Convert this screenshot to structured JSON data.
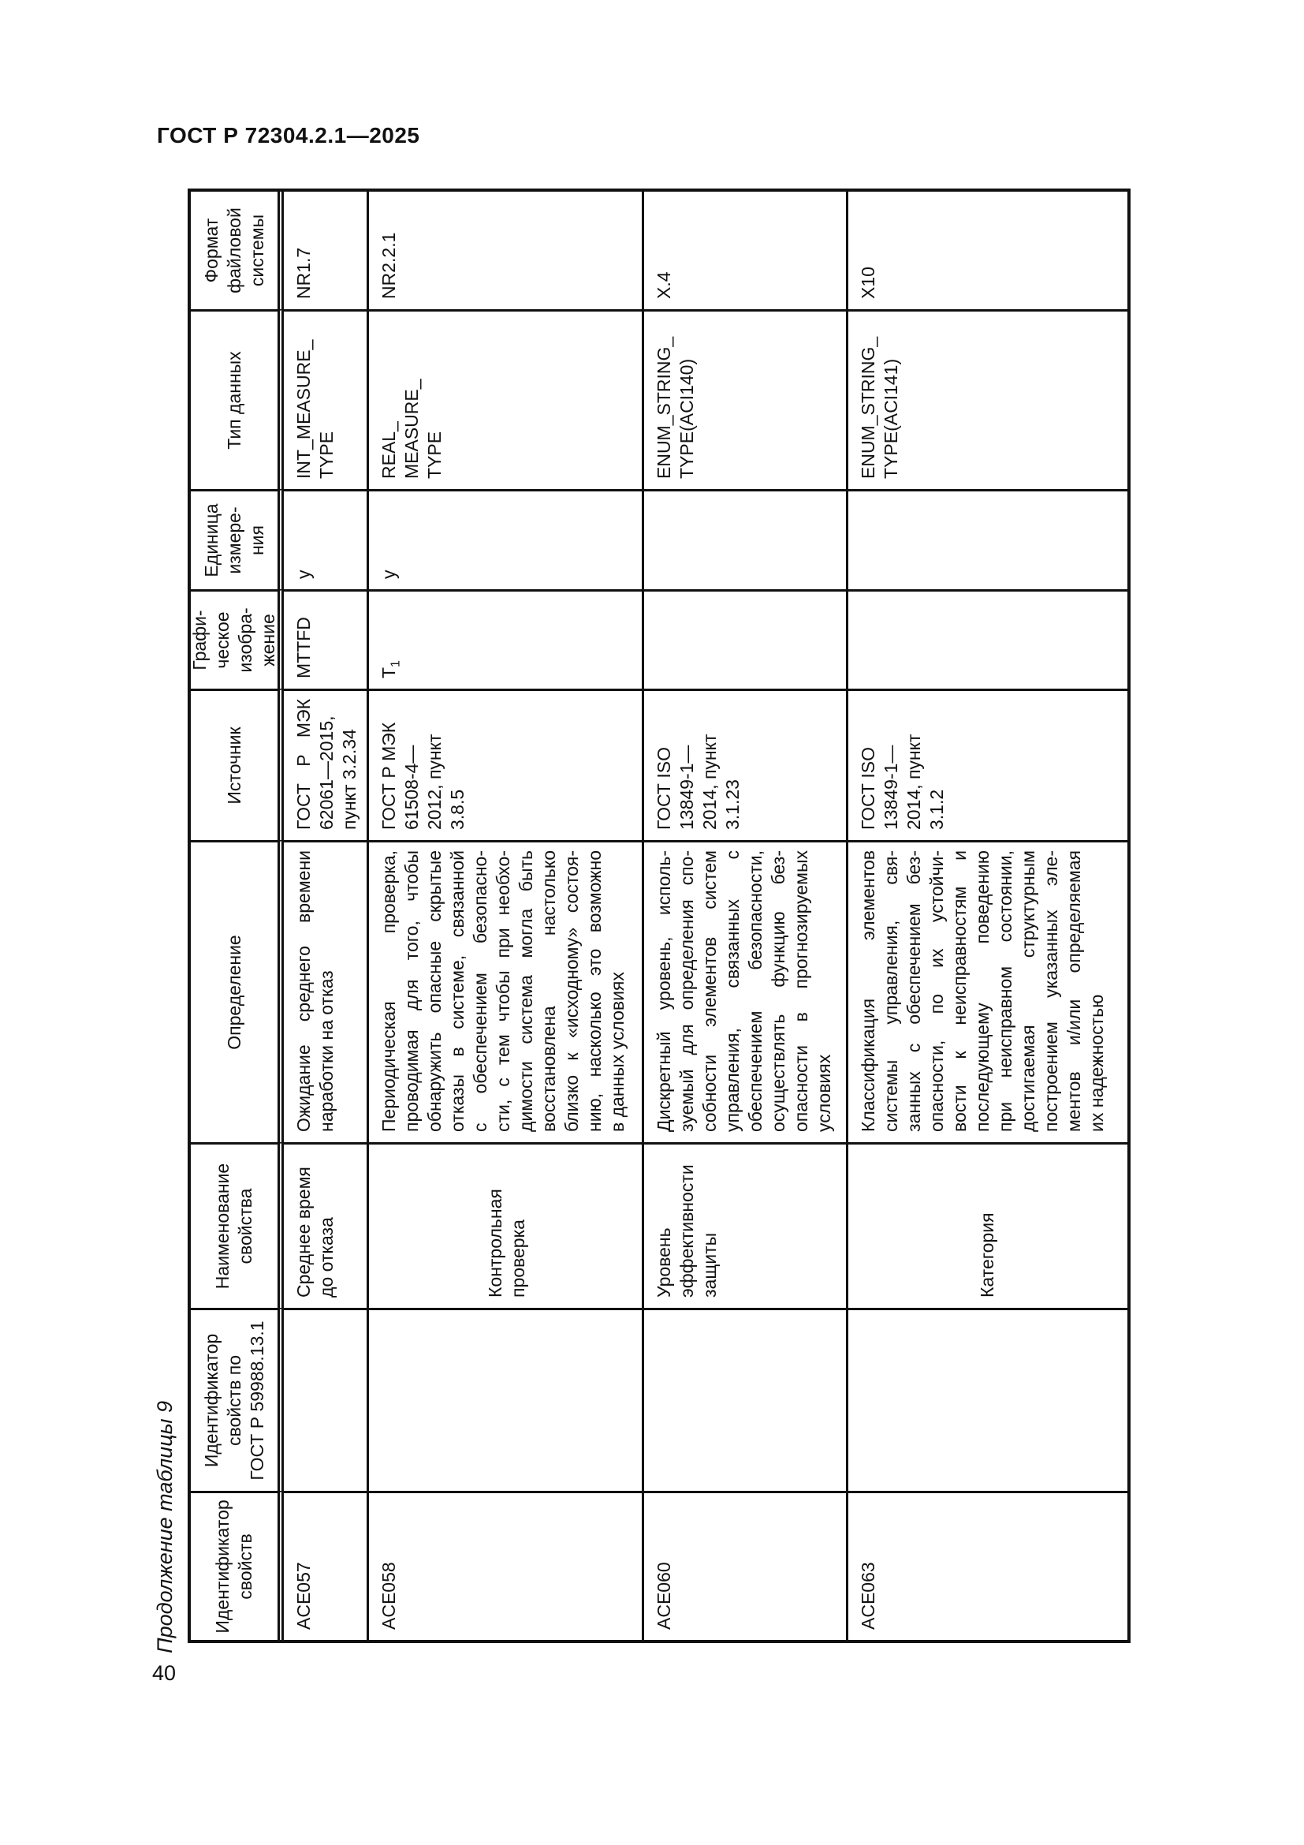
{
  "page": {
    "running_header": "ГОСТ Р 72304.2.1—2025",
    "page_number": "40",
    "table_caption": "Продолжение таблицы 9"
  },
  "table": {
    "headers": {
      "id": [
        "Идентификатор",
        "свойств"
      ],
      "id_gost": [
        "Идентификатор",
        "свойств по",
        "ГОСТ Р 59988.13.1"
      ],
      "name": [
        "Наименование",
        "свойства"
      ],
      "definition": [
        "Определение"
      ],
      "source": [
        "Источник"
      ],
      "graphic": [
        "Графи-",
        "ческое",
        "изобра-",
        "жение"
      ],
      "unit": [
        "Единица",
        "измере-",
        "ния"
      ],
      "datatype": [
        "Тип данных"
      ],
      "format": [
        "Формат",
        "файловой",
        "системы"
      ]
    },
    "rows": [
      {
        "id": "ACE057",
        "id_gost": "",
        "name": [
          "Среднее время",
          "до отказа"
        ],
        "definition": [
          "Ожидание среднего времени",
          "наработки на отказ"
        ],
        "source": [
          "ГОСТ Р МЭК",
          "62061—2015,",
          "пункт 3.2.34"
        ],
        "graphic_base": "MTTFD",
        "graphic_sub": "",
        "unit": "у",
        "datatype": [
          "INT_MEASURE_",
          "TYPE"
        ],
        "format": "NR1.7"
      },
      {
        "id": "ACE058",
        "id_gost": "",
        "name": [
          "Контрольная",
          "проверка"
        ],
        "definition": [
          "Периодическая проверка,",
          "проводимая для того, чтобы",
          "обнаружить опасные скрытые",
          "отказы в системе, связанной",
          "с обеспечением безопасно-",
          "сти, с тем чтобы при необхо-",
          "димости система могла быть",
          "восстановлена настолько",
          "близко к «исходному» состоя-",
          "нию, насколько это возможно",
          "в данных условиях"
        ],
        "source": [
          "ГОСТ Р МЭК",
          "61508-4—",
          "2012, пункт",
          "3.8.5"
        ],
        "graphic_base": "T",
        "graphic_sub": "1",
        "unit": "у",
        "datatype": [
          "REAL_",
          "MEASURE_",
          "TYPE"
        ],
        "format": "NR2.2.1"
      },
      {
        "id": "ACE060",
        "id_gost": "",
        "name": [
          "Уровень",
          "эффективности",
          "защиты"
        ],
        "definition": [
          "Дискретный уровень, исполь-",
          "зуемый для определения спо-",
          "собности элементов систем",
          "управления, связанных с",
          "обеспечением безопасности,",
          "осуществлять функцию без-",
          "опасности в прогнозируемых",
          "условиях"
        ],
        "source": [
          "ГОСТ ISO",
          "13849-1—",
          "2014, пункт",
          "3.1.23"
        ],
        "graphic_base": "",
        "graphic_sub": "",
        "unit": "",
        "datatype": [
          "ENUM_STRING_",
          "TYPE(ACI140)"
        ],
        "format": "X.4"
      },
      {
        "id": "ACE063",
        "id_gost": "",
        "name": [
          "Категория"
        ],
        "definition": [
          "Классификация элементов",
          "системы управления, свя-",
          "занных с обеспечением без-",
          "опасности, по их устойчи-",
          "вости к неисправностям и",
          "последующему поведению",
          "при неисправном состоянии,",
          "достигаемая структурным",
          "построением указанных эле-",
          "ментов и/или определяемая",
          "их надежностью"
        ],
        "source": [
          "ГОСТ ISO",
          "13849-1—",
          "2014, пункт",
          "3.1.2"
        ],
        "graphic_base": "",
        "graphic_sub": "",
        "unit": "",
        "datatype": [
          "ENUM_STRING_",
          "TYPE(ACI141)"
        ],
        "format": "X10"
      }
    ]
  }
}
